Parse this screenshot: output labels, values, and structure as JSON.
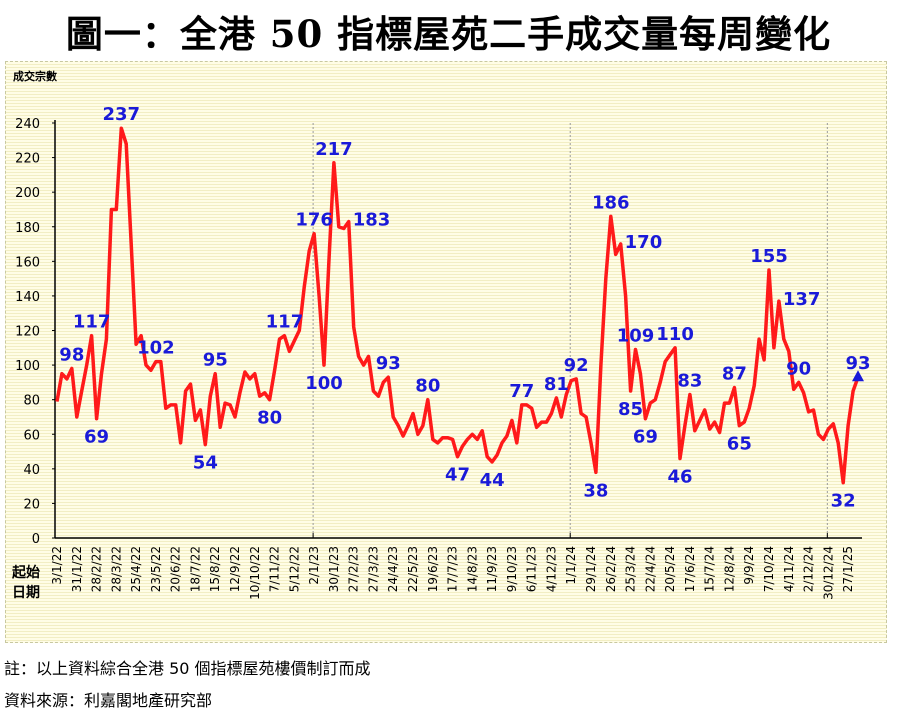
{
  "title": "圖一：全港 50 指標屋苑二手成交量每周變化",
  "notes": [
    "註：以上資料綜合全港 50 個指標屋苑樓價制訂而成",
    "資料來源：利嘉閣地產研究部"
  ],
  "chart_data": {
    "type": "line",
    "title": "圖一：全港 50 指標屋苑二手成交量每周變化",
    "ylabel": "成交宗數",
    "xlabel": "起始日期",
    "ylim": [
      0,
      240
    ],
    "yticks": [
      0,
      20,
      40,
      60,
      80,
      100,
      120,
      140,
      160,
      180,
      200,
      220,
      240
    ],
    "xtick_every_weeks": 4,
    "xtick_labels": [
      "3/1/22",
      "31/1/22",
      "28/2/22",
      "28/3/22",
      "25/4/22",
      "23/5/22",
      "20/6/22",
      "18/7/22",
      "15/8/22",
      "12/9/22",
      "10/10/22",
      "7/11/22",
      "5/12/22",
      "2/1/23",
      "30/1/23",
      "27/2/23",
      "27/3/23",
      "24/4/23",
      "22/5/23",
      "19/6/23",
      "17/7/23",
      "14/8/23",
      "11/9/23",
      "9/10/23",
      "6/11/23",
      "4/12/23",
      "1/1/24",
      "29/1/24",
      "26/2/24",
      "25/3/24",
      "22/4/24",
      "20/5/24",
      "17/6/24",
      "15/7/24",
      "12/8/24",
      "9/9/24",
      "7/10/24",
      "4/11/24",
      "2/12/24",
      "30/12/24",
      "27/1/25"
    ],
    "series": [
      {
        "color": "#ff1a1a",
        "values": [
          79,
          95,
          92,
          98,
          70,
          85,
          100,
          117,
          69,
          95,
          115,
          190,
          190,
          237,
          228,
          170,
          112,
          117,
          100,
          97,
          102,
          102,
          75,
          77,
          77,
          55,
          85,
          89,
          68,
          74,
          54,
          82,
          95,
          64,
          78,
          77,
          70,
          84,
          96,
          92,
          95,
          82,
          84,
          80,
          97,
          115,
          117,
          108,
          114,
          120,
          145,
          166,
          176,
          140,
          100,
          160,
          217,
          180,
          179,
          183,
          122,
          105,
          100,
          105,
          85,
          82,
          90,
          93,
          70,
          65,
          59,
          65,
          72,
          60,
          65,
          80,
          57,
          55,
          58,
          58,
          57,
          47,
          53,
          57,
          60,
          57,
          62,
          47,
          44,
          48,
          55,
          59,
          68,
          55,
          77,
          77,
          75,
          64,
          67,
          67,
          72,
          81,
          70,
          83,
          91,
          92,
          72,
          70,
          55,
          38,
          100,
          150,
          186,
          164,
          170,
          140,
          85,
          109,
          95,
          69,
          78,
          80,
          90,
          102,
          106,
          110,
          46,
          65,
          83,
          62,
          68,
          74,
          63,
          67,
          61,
          78,
          78,
          87,
          65,
          67,
          75,
          88,
          115,
          103,
          155,
          110,
          137,
          115,
          108,
          86,
          90,
          84,
          73,
          74,
          60,
          57,
          63,
          66,
          55,
          32,
          65,
          85,
          93
        ]
      }
    ],
    "data_labels": [
      {
        "i": 3,
        "v": "98",
        "pos": "above"
      },
      {
        "i": 7,
        "v": "117",
        "pos": "above"
      },
      {
        "i": 8,
        "v": "69",
        "pos": "below"
      },
      {
        "i": 13,
        "v": "237",
        "pos": "above"
      },
      {
        "i": 20,
        "v": "102",
        "pos": "above"
      },
      {
        "i": 30,
        "v": "54",
        "pos": "below"
      },
      {
        "i": 32,
        "v": "95",
        "pos": "above"
      },
      {
        "i": 43,
        "v": "80",
        "pos": "below"
      },
      {
        "i": 46,
        "v": "117",
        "pos": "above"
      },
      {
        "i": 52,
        "v": "176",
        "pos": "above"
      },
      {
        "i": 54,
        "v": "100",
        "pos": "below"
      },
      {
        "i": 56,
        "v": "217",
        "pos": "above"
      },
      {
        "i": 59,
        "v": "183",
        "pos": "right"
      },
      {
        "i": 67,
        "v": "93",
        "pos": "above"
      },
      {
        "i": 75,
        "v": "80",
        "pos": "above"
      },
      {
        "i": 81,
        "v": "47",
        "pos": "below"
      },
      {
        "i": 88,
        "v": "44",
        "pos": "below"
      },
      {
        "i": 94,
        "v": "77",
        "pos": "above"
      },
      {
        "i": 101,
        "v": "81",
        "pos": "above"
      },
      {
        "i": 105,
        "v": "92",
        "pos": "above"
      },
      {
        "i": 109,
        "v": "38",
        "pos": "below"
      },
      {
        "i": 112,
        "v": "186",
        "pos": "above"
      },
      {
        "i": 114,
        "v": "170",
        "pos": "right"
      },
      {
        "i": 116,
        "v": "85",
        "pos": "below"
      },
      {
        "i": 117,
        "v": "109",
        "pos": "above"
      },
      {
        "i": 119,
        "v": "69",
        "pos": "below"
      },
      {
        "i": 125,
        "v": "110",
        "pos": "above"
      },
      {
        "i": 126,
        "v": "46",
        "pos": "below"
      },
      {
        "i": 128,
        "v": "83",
        "pos": "above"
      },
      {
        "i": 137,
        "v": "87",
        "pos": "above"
      },
      {
        "i": 138,
        "v": "65",
        "pos": "below"
      },
      {
        "i": 144,
        "v": "155",
        "pos": "above"
      },
      {
        "i": 146,
        "v": "137",
        "pos": "right"
      },
      {
        "i": 150,
        "v": "90",
        "pos": "above"
      },
      {
        "i": 159,
        "v": "32",
        "pos": "below"
      },
      {
        "i": 162,
        "v": "93",
        "pos": "above"
      }
    ],
    "label_color": "#1a1ad8",
    "last_point_marker": "triangle-up",
    "grid": false,
    "year_separators": [
      "2/1/23",
      "1/1/24",
      "30/12/24"
    ]
  }
}
